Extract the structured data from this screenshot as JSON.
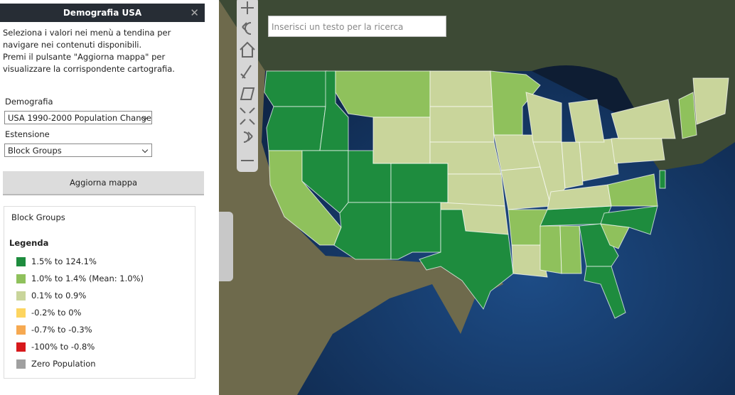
{
  "panel": {
    "title": "Demografia USA",
    "intro": [
      "Seleziona i valori nei menù a tendina per navigare nei contenuti disponibili.",
      "Premi il pulsante \"Aggiorna mappa\" per visualizzare la corrispondente cartografia."
    ],
    "fields": [
      {
        "label": "Demografia",
        "value": "USA 1990-2000 Population Change"
      },
      {
        "label": "Estensione",
        "value": "Block Groups"
      }
    ],
    "button": "Aggiorna mappa"
  },
  "legend_box": {
    "layer": "Block Groups",
    "title": "Legenda",
    "items": [
      {
        "label": "1.5% to 124.1%",
        "color": "#1e8c3e"
      },
      {
        "label": "1.0% to 1.4% (Mean: 1.0%)",
        "color": "#8fc15c"
      },
      {
        "label": "0.1% to 0.9%",
        "color": "#c9d59b"
      },
      {
        "label": "-0.2% to 0%",
        "color": "#fdd560"
      },
      {
        "label": "-0.7% to -0.3%",
        "color": "#f6a951"
      },
      {
        "label": "-100% to -0.8%",
        "color": "#d7191c"
      },
      {
        "label": "Zero Population",
        "color": "#a0a0a0"
      }
    ]
  },
  "search": {
    "placeholder": "Inserisci un testo per la ricerca"
  }
}
